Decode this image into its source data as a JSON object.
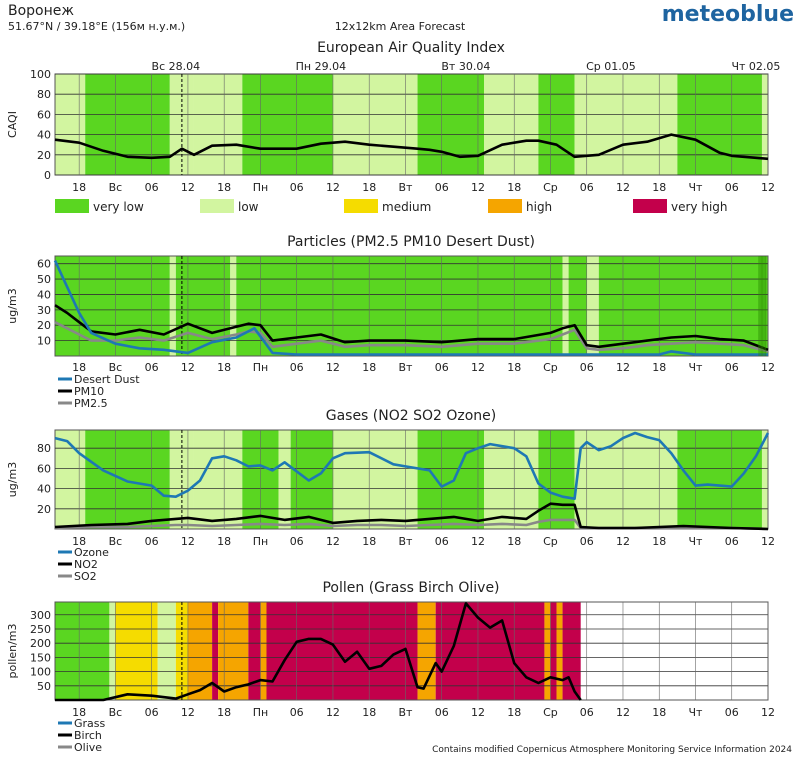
{
  "header": {
    "location": "Воронеж",
    "coords": "51.67°N / 39.18°E (156м н.у.м.)",
    "forecast_type": "12x12km Area Forecast",
    "brand": "meteoblue",
    "footer": "Contains modified Copernicus Atmosphere Monitoring Service Information 2024"
  },
  "colors": {
    "very_low": "#5ad621",
    "low": "#d2f5a0",
    "medium": "#f5dc00",
    "high": "#f5a500",
    "very_high": "#c3004b",
    "brand": "#1e64a0",
    "desert_dust": "#1e78b4",
    "pm10": "#000000",
    "pm25": "#888888"
  },
  "time_axis": {
    "start_hour": 14,
    "hours": 118,
    "day_labels": [
      {
        "hour": 34,
        "label": "Вс 28.04"
      },
      {
        "hour": 58,
        "label": "Пн 29.04"
      },
      {
        "hour": 82,
        "label": "Вт 30.04"
      },
      {
        "hour": 106,
        "label": "Ср 01.05"
      },
      {
        "hour": 130,
        "label": "Чт 02.05"
      }
    ],
    "ticks": [
      {
        "hour": 18,
        "label": "18"
      },
      {
        "hour": 24,
        "label": "Вс"
      },
      {
        "hour": 30,
        "label": "06"
      },
      {
        "hour": 36,
        "label": "12"
      },
      {
        "hour": 42,
        "label": "18"
      },
      {
        "hour": 48,
        "label": "Пн"
      },
      {
        "hour": 54,
        "label": "06"
      },
      {
        "hour": 60,
        "label": "12"
      },
      {
        "hour": 66,
        "label": "18"
      },
      {
        "hour": 72,
        "label": "Вт"
      },
      {
        "hour": 78,
        "label": "06"
      },
      {
        "hour": 84,
        "label": "12"
      },
      {
        "hour": 90,
        "label": "18"
      },
      {
        "hour": 96,
        "label": "Ср"
      },
      {
        "hour": 102,
        "label": "06"
      },
      {
        "hour": 108,
        "label": "12"
      },
      {
        "hour": 114,
        "label": "18"
      },
      {
        "hour": 120,
        "label": "Чт"
      },
      {
        "hour": 126,
        "label": "06"
      },
      {
        "hour": 132,
        "label": "12"
      }
    ],
    "now_hour": 35
  },
  "legend_categories": [
    {
      "label": "very low",
      "color": "#5ad621"
    },
    {
      "label": "low",
      "color": "#d2f5a0"
    },
    {
      "label": "medium",
      "color": "#f5dc00"
    },
    {
      "label": "high",
      "color": "#f5a500"
    },
    {
      "label": "very high",
      "color": "#c3004b"
    }
  ],
  "chart_data": [
    {
      "type": "line",
      "title": "European Air Quality Index",
      "ylabel": "CAQI",
      "ylim": [
        0,
        100
      ],
      "yticks": [
        "0",
        "20",
        "40",
        "60",
        "80",
        "100"
      ],
      "background_bands": [
        {
          "start": 14,
          "end": 19,
          "category": "low"
        },
        {
          "start": 19,
          "end": 33,
          "category": "very_low"
        },
        {
          "start": 33,
          "end": 37,
          "category": "low"
        },
        {
          "start": 37,
          "end": 45,
          "category": "low"
        },
        {
          "start": 45,
          "end": 60,
          "category": "very_low"
        },
        {
          "start": 60,
          "end": 74,
          "category": "low"
        },
        {
          "start": 74,
          "end": 85,
          "category": "very_low"
        },
        {
          "start": 85,
          "end": 94,
          "category": "low"
        },
        {
          "start": 94,
          "end": 100,
          "category": "very_low"
        },
        {
          "start": 100,
          "end": 117,
          "category": "low"
        },
        {
          "start": 117,
          "end": 131,
          "category": "very_low"
        },
        {
          "start": 131,
          "end": 132,
          "category": "low"
        }
      ],
      "series": [
        {
          "color": "#000000",
          "x": [
            14,
            18,
            22,
            26,
            30,
            33,
            35,
            37,
            40,
            44,
            48,
            54,
            58,
            62,
            66,
            70,
            74,
            76,
            78,
            81,
            84,
            88,
            92,
            94,
            97,
            100,
            104,
            108,
            112,
            116,
            120,
            124,
            126,
            128,
            130,
            132
          ],
          "y": [
            35,
            32,
            24,
            18,
            17,
            18,
            26,
            20,
            29,
            30,
            26,
            26,
            31,
            33,
            30,
            28,
            26,
            25,
            23,
            18,
            19,
            30,
            34,
            34,
            30,
            18,
            20,
            30,
            33,
            40,
            35,
            22,
            19,
            18,
            17,
            16
          ]
        }
      ]
    },
    {
      "type": "line",
      "title": "Particles (PM2.5 PM10 Desert Dust)",
      "ylabel": "ug/m3",
      "ylim": [
        0,
        65
      ],
      "yticks": [
        "10",
        "20",
        "30",
        "40",
        "50",
        "60"
      ],
      "background_bands": [
        {
          "start": 14,
          "end": 33,
          "category": "very_low"
        },
        {
          "start": 33,
          "end": 34,
          "category": "low"
        },
        {
          "start": 34,
          "end": 43,
          "category": "very_low"
        },
        {
          "start": 43,
          "end": 44,
          "category": "low"
        },
        {
          "start": 44,
          "end": 98,
          "category": "very_low"
        },
        {
          "start": 98,
          "end": 99,
          "category": "low"
        },
        {
          "start": 99,
          "end": 102,
          "category": "very_low"
        },
        {
          "start": 102,
          "end": 104,
          "category": "low"
        },
        {
          "start": 104,
          "end": 132,
          "category": "very_low"
        }
      ],
      "series": [
        {
          "name": "Desert Dust",
          "color": "#1e78b4",
          "x": [
            14,
            16,
            18,
            20,
            24,
            28,
            32,
            36,
            40,
            44,
            47,
            50,
            54,
            60,
            66,
            72,
            78,
            84,
            90,
            96,
            100,
            102,
            104,
            108,
            114,
            116,
            120,
            126,
            130,
            132
          ],
          "y": [
            62,
            45,
            28,
            15,
            8,
            5,
            4,
            2,
            9,
            12,
            18,
            2,
            1,
            1,
            1,
            1,
            1,
            1,
            1,
            1,
            1,
            1,
            1,
            1,
            1,
            3,
            1,
            1,
            1,
            1
          ]
        },
        {
          "name": "PM10",
          "color": "#000000",
          "x": [
            14,
            16,
            18,
            20,
            24,
            28,
            32,
            36,
            40,
            44,
            46,
            48,
            50,
            54,
            58,
            62,
            66,
            72,
            78,
            84,
            90,
            96,
            98,
            100,
            102,
            104,
            108,
            112,
            116,
            120,
            124,
            128,
            132
          ],
          "y": [
            33,
            28,
            22,
            16,
            14,
            17,
            14,
            21,
            15,
            19,
            21,
            20,
            10,
            12,
            14,
            9,
            10,
            10,
            9,
            11,
            11,
            15,
            18,
            20,
            7,
            6,
            8,
            10,
            12,
            13,
            11,
            10,
            4
          ]
        },
        {
          "name": "PM2.5",
          "color": "#888888",
          "x": [
            14,
            16,
            18,
            20,
            24,
            28,
            32,
            36,
            40,
            44,
            46,
            48,
            50,
            54,
            58,
            62,
            66,
            72,
            78,
            84,
            90,
            96,
            98,
            100,
            102,
            104,
            108,
            112,
            116,
            120,
            124,
            128,
            132
          ],
          "y": [
            22,
            18,
            14,
            10,
            10,
            12,
            10,
            15,
            11,
            14,
            16,
            15,
            6,
            8,
            10,
            6,
            7,
            7,
            6,
            8,
            8,
            11,
            14,
            17,
            5,
            4,
            5,
            7,
            8,
            9,
            8,
            7,
            3
          ]
        }
      ],
      "legend": [
        "Desert Dust",
        "PM10",
        "PM2.5"
      ]
    },
    {
      "type": "line",
      "title": "Gases (NO2 SO2 Ozone)",
      "ylabel": "ug/m3",
      "ylim": [
        0,
        98
      ],
      "yticks": [
        "20",
        "40",
        "60",
        "80"
      ],
      "background_bands": [
        {
          "start": 14,
          "end": 19,
          "category": "low"
        },
        {
          "start": 19,
          "end": 33,
          "category": "very_low"
        },
        {
          "start": 33,
          "end": 37,
          "category": "low"
        },
        {
          "start": 37,
          "end": 45,
          "category": "low"
        },
        {
          "start": 45,
          "end": 51,
          "category": "very_low"
        },
        {
          "start": 51,
          "end": 53,
          "category": "low"
        },
        {
          "start": 53,
          "end": 60,
          "category": "very_low"
        },
        {
          "start": 60,
          "end": 74,
          "category": "low"
        },
        {
          "start": 74,
          "end": 85,
          "category": "very_low"
        },
        {
          "start": 85,
          "end": 94,
          "category": "low"
        },
        {
          "start": 94,
          "end": 100,
          "category": "very_low"
        },
        {
          "start": 100,
          "end": 117,
          "category": "low"
        },
        {
          "start": 117,
          "end": 131,
          "category": "very_low"
        },
        {
          "start": 131,
          "end": 132,
          "category": "low"
        }
      ],
      "series": [
        {
          "name": "Ozone",
          "color": "#1e78b4",
          "x": [
            14,
            16,
            18,
            22,
            26,
            30,
            32,
            34,
            36,
            38,
            40,
            42,
            44,
            46,
            48,
            50,
            52,
            54,
            56,
            58,
            60,
            62,
            66,
            70,
            72,
            76,
            78,
            80,
            82,
            84,
            86,
            88,
            90,
            92,
            94,
            96,
            98,
            100,
            101,
            102,
            104,
            106,
            108,
            110,
            112,
            114,
            116,
            118,
            120,
            122,
            124,
            126,
            128,
            130,
            132
          ],
          "y": [
            90,
            87,
            75,
            58,
            47,
            43,
            33,
            32,
            38,
            48,
            70,
            72,
            68,
            62,
            63,
            58,
            66,
            57,
            48,
            55,
            70,
            75,
            76,
            64,
            62,
            58,
            42,
            48,
            75,
            80,
            84,
            82,
            80,
            72,
            45,
            36,
            32,
            30,
            80,
            86,
            78,
            82,
            90,
            95,
            91,
            88,
            75,
            58,
            43,
            44,
            43,
            42,
            55,
            72,
            95
          ]
        },
        {
          "name": "NO2",
          "color": "#000000",
          "x": [
            14,
            20,
            26,
            30,
            34,
            36,
            40,
            44,
            48,
            52,
            56,
            60,
            64,
            68,
            72,
            76,
            80,
            84,
            88,
            92,
            94,
            96,
            98,
            100,
            101,
            104,
            110,
            118,
            122,
            126,
            132
          ],
          "y": [
            2,
            4,
            5,
            8,
            10,
            11,
            8,
            10,
            13,
            9,
            12,
            6,
            8,
            9,
            8,
            10,
            12,
            8,
            12,
            10,
            18,
            25,
            24,
            24,
            2,
            1,
            1,
            3,
            2,
            1,
            0
          ]
        },
        {
          "name": "SO2",
          "color": "#888888",
          "x": [
            14,
            20,
            26,
            30,
            34,
            36,
            40,
            44,
            48,
            52,
            56,
            60,
            64,
            68,
            72,
            76,
            80,
            84,
            88,
            92,
            94,
            96,
            98,
            100,
            101,
            104,
            110,
            118,
            122,
            126,
            132
          ],
          "y": [
            1,
            2,
            2,
            3,
            4,
            4,
            3,
            4,
            5,
            4,
            5,
            3,
            4,
            4,
            3,
            4,
            5,
            4,
            5,
            4,
            7,
            9,
            9,
            9,
            1,
            1,
            1,
            1,
            1,
            1,
            0
          ]
        }
      ],
      "legend": [
        "Ozone",
        "NO2",
        "SO2"
      ]
    },
    {
      "type": "line",
      "title": "Pollen (Grass Birch Olive)",
      "ylabel": "pollen/m3",
      "ylim": [
        0,
        345
      ],
      "yticks": [
        "50",
        "100",
        "150",
        "200",
        "250",
        "300"
      ],
      "background_bands": [
        {
          "start": 14,
          "end": 23,
          "category": "very_low"
        },
        {
          "start": 23,
          "end": 24,
          "category": "low"
        },
        {
          "start": 24,
          "end": 31,
          "category": "medium"
        },
        {
          "start": 31,
          "end": 34,
          "category": "low"
        },
        {
          "start": 34,
          "end": 36,
          "category": "medium"
        },
        {
          "start": 36,
          "end": 40,
          "category": "high"
        },
        {
          "start": 40,
          "end": 41,
          "category": "very_high"
        },
        {
          "start": 41,
          "end": 46,
          "category": "high"
        },
        {
          "start": 46,
          "end": 48,
          "category": "very_high"
        },
        {
          "start": 48,
          "end": 49,
          "category": "high"
        },
        {
          "start": 49,
          "end": 74,
          "category": "very_high"
        },
        {
          "start": 74,
          "end": 77,
          "category": "high"
        },
        {
          "start": 77,
          "end": 95,
          "category": "very_high"
        },
        {
          "start": 95,
          "end": 96,
          "category": "high"
        },
        {
          "start": 96,
          "end": 97,
          "category": "very_high"
        },
        {
          "start": 97,
          "end": 98,
          "category": "high"
        },
        {
          "start": 98,
          "end": 101,
          "category": "very_high"
        }
      ],
      "series": [
        {
          "name": "Grass",
          "color": "#1e78b4",
          "x": [],
          "y": []
        },
        {
          "name": "Birch",
          "color": "#000000",
          "x": [
            14,
            22,
            24,
            26,
            30,
            34,
            36,
            38,
            40,
            42,
            44,
            46,
            48,
            50,
            52,
            54,
            56,
            58,
            60,
            62,
            64,
            66,
            68,
            70,
            72,
            74,
            75,
            77,
            78,
            80,
            82,
            84,
            86,
            88,
            90,
            92,
            94,
            96,
            98,
            99,
            100,
            101
          ],
          "y": [
            0,
            0,
            10,
            20,
            15,
            5,
            20,
            35,
            60,
            30,
            45,
            55,
            70,
            65,
            140,
            205,
            215,
            215,
            195,
            135,
            170,
            110,
            120,
            160,
            180,
            45,
            40,
            130,
            100,
            190,
            340,
            290,
            255,
            280,
            130,
            80,
            60,
            80,
            70,
            80,
            30,
            0
          ]
        },
        {
          "name": "Olive",
          "color": "#888888",
          "x": [],
          "y": []
        }
      ],
      "legend": [
        "Grass",
        "Birch",
        "Olive"
      ]
    }
  ]
}
